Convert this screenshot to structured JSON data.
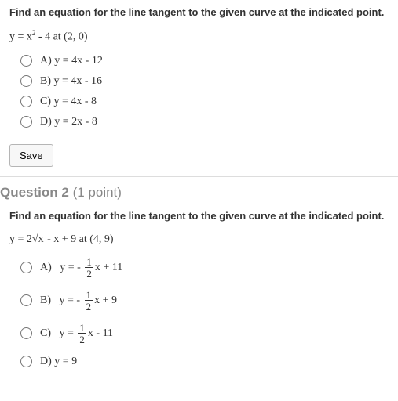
{
  "q1": {
    "prompt": "Find an equation for the line tangent to the given curve at the indicated point.",
    "eq_prefix": "y = x",
    "eq_sup": "2",
    "eq_suffix": " - 4 at (2, 0)",
    "choices": {
      "a": "A)   y = 4x - 12",
      "b": "B)   y = 4x - 16",
      "c": "C)   y = 4x - 8",
      "d": "D)   y = 2x - 8"
    },
    "save": "Save"
  },
  "header2": {
    "label": "Question 2",
    "points": " (1 point)"
  },
  "q2": {
    "prompt": "Find an equation for the line tangent to the given curve at the indicated point.",
    "eq_prefix": "y = 2",
    "eq_root_sym": "√",
    "eq_radicand": "x",
    "eq_suffix": "  - x + 9 at (4, 9)",
    "choices": {
      "a_pre": "A)   y = - ",
      "a_num": "1",
      "a_den": "2",
      "a_post": " x + 11",
      "b_pre": "B)   y = - ",
      "b_num": "1",
      "b_den": "2",
      "b_post": " x + 9",
      "c_pre": "C)   y = ",
      "c_num": "1",
      "c_den": "2",
      "c_post": " x - 11",
      "d": "D)   y = 9"
    }
  }
}
